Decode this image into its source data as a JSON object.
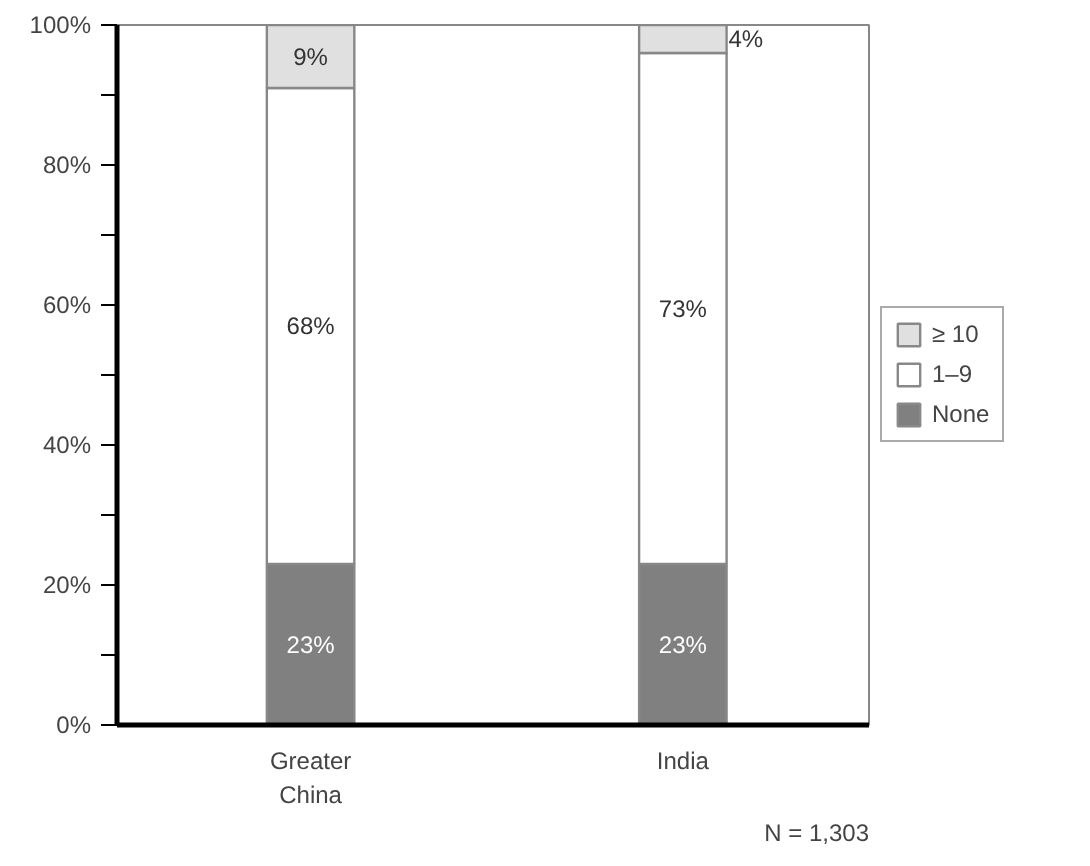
{
  "chart_data": {
    "type": "bar",
    "stacked": true,
    "categories": [
      "Greater China",
      "India"
    ],
    "series": [
      {
        "name": "None",
        "color": "#808080",
        "values": [
          23,
          23
        ],
        "value_labels": [
          "23%",
          "23%"
        ]
      },
      {
        "name": "1–9",
        "color": "#ffffff",
        "values": [
          68,
          73
        ],
        "value_labels": [
          "68%",
          "73%"
        ]
      },
      {
        "name": "≥ 10",
        "color": "#e0e0e0",
        "values": [
          9,
          4
        ],
        "value_labels": [
          "9%",
          "4%"
        ]
      }
    ],
    "ylim": [
      0,
      100
    ],
    "yticks": [
      {
        "value": 0,
        "label": "0%"
      },
      {
        "value": 10,
        "label": null
      },
      {
        "value": 20,
        "label": "20%"
      },
      {
        "value": 30,
        "label": null
      },
      {
        "value": 40,
        "label": "40%"
      },
      {
        "value": 50,
        "label": null
      },
      {
        "value": 60,
        "label": "60%"
      },
      {
        "value": 70,
        "label": null
      },
      {
        "value": 80,
        "label": "80%"
      },
      {
        "value": 90,
        "label": null
      },
      {
        "value": 100,
        "label": "100%"
      }
    ],
    "legend": "right",
    "grid": false,
    "annotations": [
      "N = 1,303"
    ]
  }
}
